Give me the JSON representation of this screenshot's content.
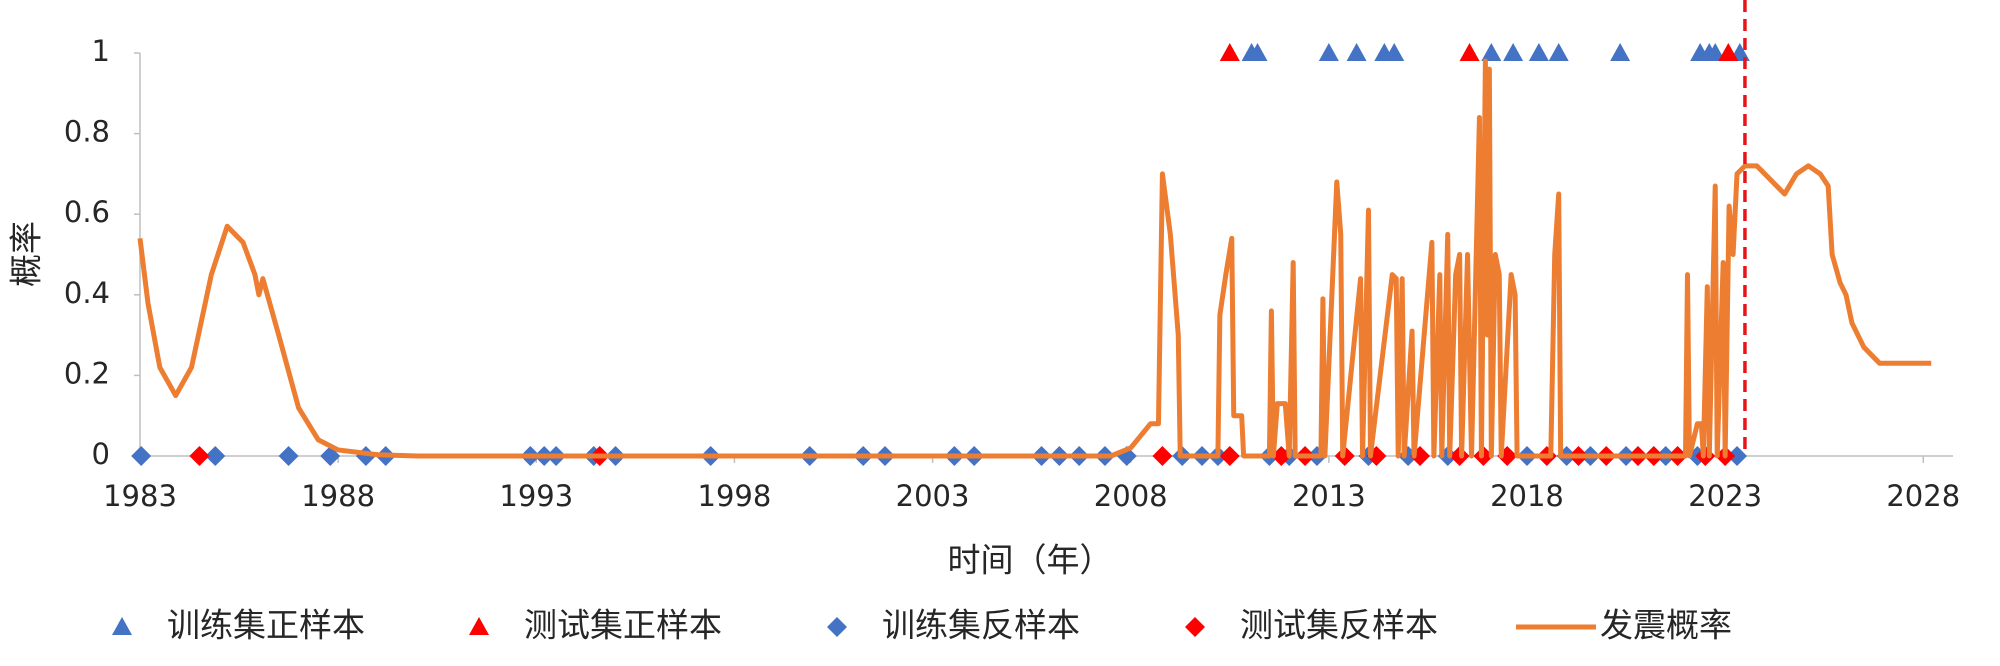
{
  "chart_data": {
    "type": "scatter",
    "x_label": "时间（年）",
    "y_label": "概率",
    "xlim": [
      1983,
      2028.75
    ],
    "ylim": [
      0,
      1
    ],
    "xticks": [
      1983,
      1988,
      1993,
      1998,
      2003,
      2008,
      2013,
      2018,
      2023,
      2028
    ],
    "yticks": [
      0,
      0.2,
      0.4,
      0.6,
      0.8,
      1
    ],
    "grid": false,
    "legend": "bottom",
    "vline": {
      "x": 2023.5,
      "color": "#e8141a"
    },
    "series": [
      {
        "name": "训练集正样本",
        "color": "#4472c4",
        "marker": "triangle",
        "x": [
          2011.05,
          2011.2,
          2013.0,
          2013.7,
          2014.4,
          2014.65,
          2017.1,
          2017.65,
          2018.3,
          2018.8,
          2020.35,
          2022.37,
          2022.6,
          2022.75,
          2023.37
        ],
        "y": [
          1,
          1,
          1,
          1,
          1,
          1,
          1,
          1,
          1,
          1,
          1,
          1,
          1,
          1,
          1
        ]
      },
      {
        "name": "测试集正样本",
        "color": "#ff0000",
        "marker": "triangle",
        "x": [
          2010.5,
          2016.55,
          2023.08
        ],
        "y": [
          1,
          1,
          1
        ]
      },
      {
        "name": "训练集反样本",
        "color": "#4472c4",
        "marker": "diamond",
        "x": [
          1983.03,
          1984.9,
          1986.75,
          1987.8,
          1988.7,
          1989.2,
          1992.85,
          1993.2,
          1993.5,
          1994.45,
          1995.0,
          1997.4,
          1999.9,
          2001.25,
          2001.8,
          2003.55,
          2004.05,
          2005.75,
          2006.2,
          2006.7,
          2007.35,
          2007.9,
          2009.3,
          2009.8,
          2010.2,
          2011.5,
          2012.0,
          2012.7,
          2014.0,
          2015.0,
          2016.0,
          2018.0,
          2019.0,
          2019.6,
          2020.5,
          2021.5,
          2022.3,
          2023.3
        ],
        "y": [
          0,
          0,
          0,
          0,
          0,
          0,
          0,
          0,
          0,
          0,
          0,
          0,
          0,
          0,
          0,
          0,
          0,
          0,
          0,
          0,
          0,
          0,
          0,
          0,
          0,
          0,
          0,
          0,
          0,
          0,
          0,
          0,
          0,
          0,
          0,
          0,
          0,
          0
        ]
      },
      {
        "name": "测试集反样本",
        "color": "#ff0000",
        "marker": "diamond",
        "x": [
          1984.5,
          1994.6,
          2008.8,
          2010.5,
          2011.8,
          2012.4,
          2013.4,
          2014.2,
          2015.3,
          2016.3,
          2016.9,
          2017.5,
          2018.5,
          2019.3,
          2020.0,
          2020.8,
          2021.2,
          2021.8,
          2022.5,
          2023.0
        ],
        "y": [
          0,
          0,
          0,
          0,
          0,
          0,
          0,
          0,
          0,
          0,
          0,
          0,
          0,
          0,
          0,
          0,
          0,
          0,
          0,
          0
        ]
      },
      {
        "name": "发震概率",
        "color": "#ed7d31",
        "marker": "line",
        "x": [
          1983.0,
          1983.2,
          1983.5,
          1983.9,
          1984.3,
          1984.8,
          1985.2,
          1985.6,
          1985.9,
          1986.0,
          1986.1,
          1986.5,
          1987.0,
          1987.5,
          1988.0,
          1989.0,
          1990.0,
          2007.5,
          2008.0,
          2008.5,
          2008.7,
          2008.8,
          2009.0,
          2009.2,
          2009.25,
          2010.2,
          2010.25,
          2010.4,
          2010.55,
          2010.6,
          2010.8,
          2010.85,
          2011.5,
          2011.55,
          2011.6,
          2011.7,
          2011.9,
          2012.0,
          2012.1,
          2012.15,
          2012.8,
          2012.85,
          2012.9,
          2013.2,
          2013.3,
          2013.35,
          2013.8,
          2013.85,
          2014.0,
          2014.05,
          2014.6,
          2014.7,
          2014.75,
          2014.85,
          2014.9,
          2015.1,
          2015.15,
          2015.6,
          2015.65,
          2015.8,
          2015.85,
          2016.0,
          2016.05,
          2016.2,
          2016.3,
          2016.35,
          2016.5,
          2016.6,
          2016.8,
          2016.85,
          2016.95,
          2017.0,
          2017.05,
          2017.1,
          2017.2,
          2017.3,
          2017.35,
          2017.6,
          2017.7,
          2017.75,
          2018.6,
          2018.7,
          2018.8,
          2018.85,
          2022.0,
          2022.05,
          2022.1,
          2022.3,
          2022.4,
          2022.45,
          2022.55,
          2022.6,
          2022.75,
          2022.8,
          2022.95,
          2023.0,
          2023.1,
          2023.2,
          2023.3,
          2023.5,
          2023.8,
          2024.5,
          2024.8,
          2025.1,
          2025.4,
          2025.6,
          2025.7,
          2025.9,
          2026.05,
          2026.2,
          2026.5,
          2026.9,
          2028.2
        ],
        "y": [
          0.54,
          0.38,
          0.22,
          0.15,
          0.22,
          0.45,
          0.57,
          0.53,
          0.45,
          0.4,
          0.44,
          0.3,
          0.12,
          0.04,
          0.015,
          0.003,
          0,
          0,
          0.02,
          0.08,
          0.08,
          0.7,
          0.55,
          0.3,
          0,
          0,
          0.35,
          0.45,
          0.54,
          0.1,
          0.1,
          0,
          0,
          0.36,
          0,
          0.13,
          0.13,
          0,
          0.48,
          0,
          0,
          0.39,
          0,
          0.68,
          0.55,
          0,
          0.44,
          0,
          0.61,
          0,
          0.45,
          0.44,
          0,
          0.44,
          0,
          0.31,
          0,
          0.53,
          0,
          0.45,
          0,
          0.55,
          0,
          0.45,
          0.5,
          0,
          0.5,
          0,
          0.84,
          0,
          0.98,
          0.3,
          0.96,
          0,
          0.5,
          0.45,
          0,
          0.45,
          0.4,
          0,
          0,
          0.5,
          0.65,
          0,
          0,
          0.45,
          0,
          0.08,
          0.08,
          0,
          0.42,
          0,
          0.67,
          0,
          0.48,
          0,
          0.62,
          0.5,
          0.7,
          0.72,
          0.72,
          0.65,
          0.7,
          0.72,
          0.7,
          0.67,
          0.5,
          0.43,
          0.4,
          0.33,
          0.27,
          0.23,
          0.23
        ]
      }
    ]
  }
}
